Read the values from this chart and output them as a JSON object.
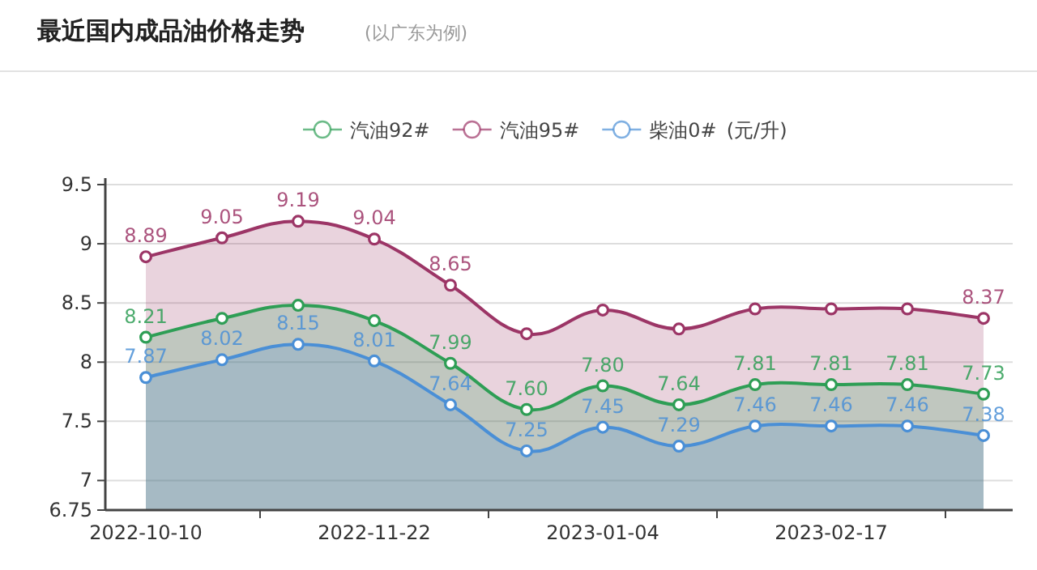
{
  "chart_data": {
    "type": "area",
    "title": "最近国内成品油价格走势",
    "subtitle": "(以广东为例)",
    "ylabel": "(元/升)",
    "categories": [
      "2022-10-10",
      null,
      null,
      "2022-11-22",
      null,
      null,
      "2023-01-04",
      null,
      null,
      "2023-02-17",
      null,
      null
    ],
    "series": [
      {
        "name": "汽油92#",
        "color": "#2e9e55",
        "values": [
          8.21,
          8.37,
          8.48,
          8.35,
          7.99,
          7.6,
          7.8,
          7.64,
          7.81,
          7.81,
          7.81,
          7.73
        ],
        "value_labels": [
          "8.21",
          null,
          null,
          null,
          "7.99",
          "7.60",
          "7.80",
          "7.64",
          "7.81",
          "7.81",
          "7.81",
          "7.73"
        ]
      },
      {
        "name": "汽油95#",
        "color": "#9c3566",
        "values": [
          8.89,
          9.05,
          9.19,
          9.04,
          8.65,
          8.24,
          8.44,
          8.28,
          8.45,
          8.45,
          8.45,
          8.37
        ],
        "value_labels": [
          "8.89",
          "9.05",
          "9.19",
          "9.04",
          "8.65",
          null,
          null,
          null,
          null,
          null,
          null,
          "8.37"
        ]
      },
      {
        "name": "柴油0#",
        "color": "#4a8fd6",
        "values": [
          7.87,
          8.02,
          8.15,
          8.01,
          7.64,
          7.25,
          7.45,
          7.29,
          7.46,
          7.46,
          7.46,
          7.38
        ],
        "value_labels": [
          "7.87",
          "8.02",
          "8.15",
          "8.01",
          "7.64",
          "7.25",
          "7.45",
          "7.29",
          "7.46",
          "7.46",
          "7.46",
          "7.38"
        ]
      }
    ],
    "ylim": [
      6.75,
      9.5
    ],
    "yticks": [
      6.75,
      7,
      7.5,
      8,
      8.5,
      9,
      9.5
    ],
    "grid": "y",
    "legend": "top",
    "marker": "circle"
  }
}
